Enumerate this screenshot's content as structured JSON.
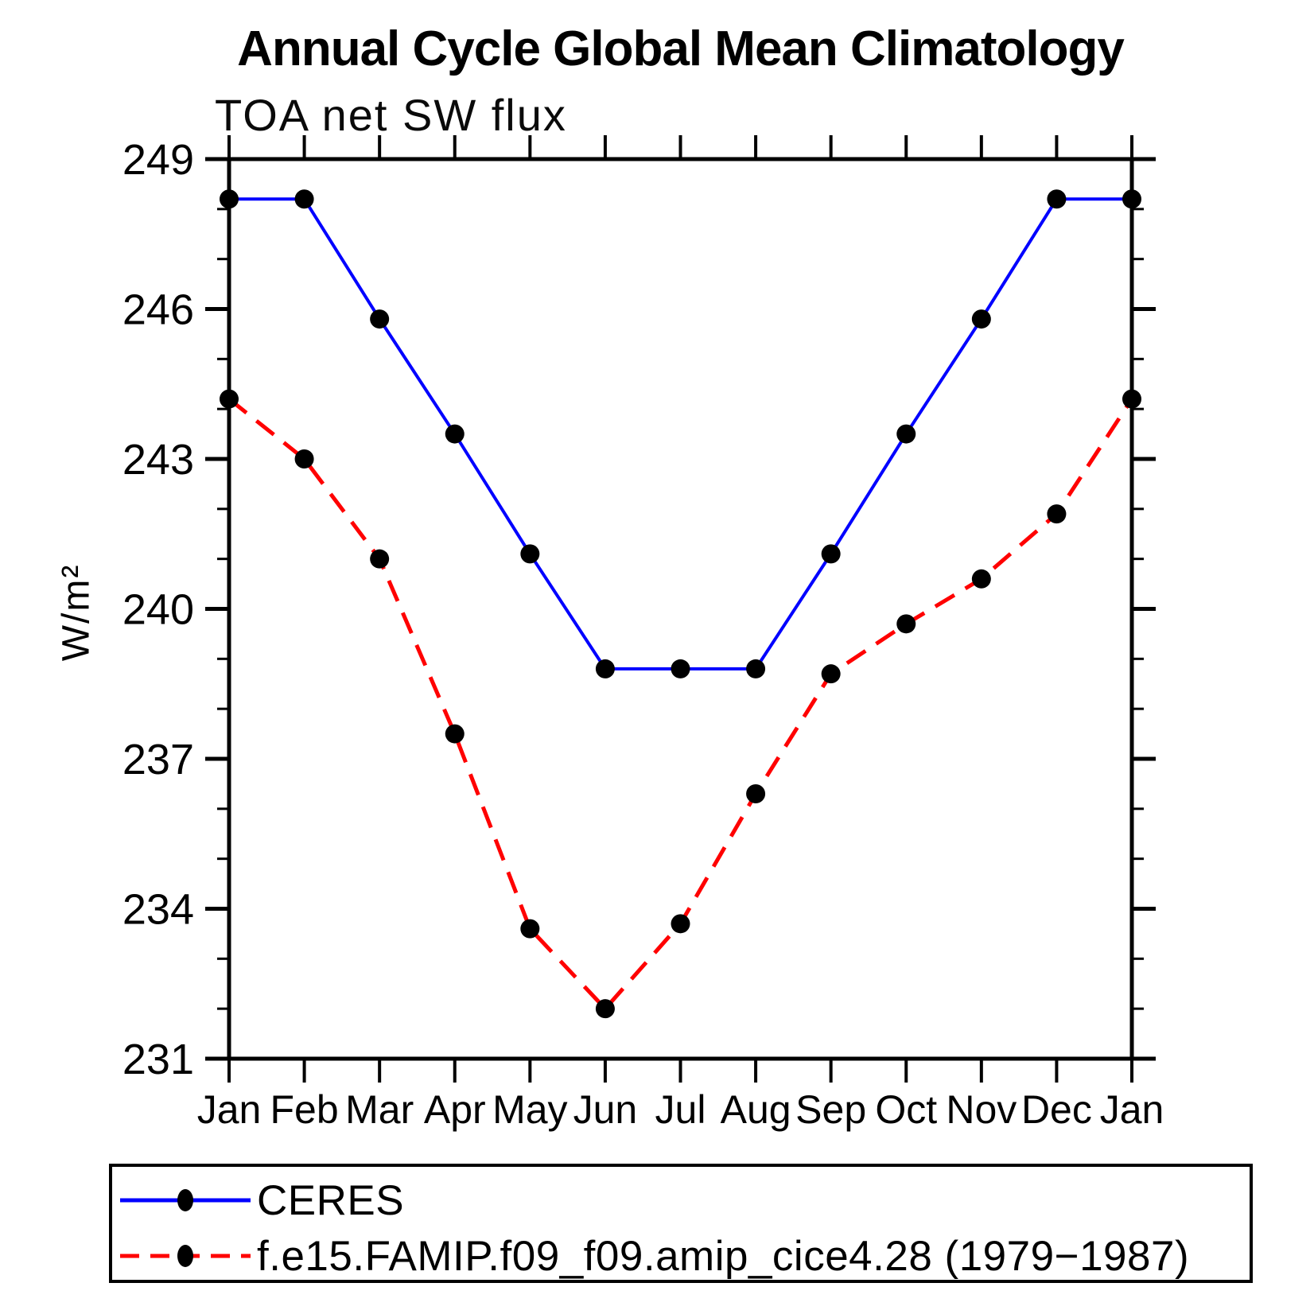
{
  "chart_data": {
    "type": "line",
    "title": "Annual Cycle Global Mean Climatology",
    "subtitle": "TOA net SW flux",
    "ylabel": "W/m²",
    "xlabel": "",
    "x_categories": [
      "Jan",
      "Feb",
      "Mar",
      "Apr",
      "May",
      "Jun",
      "Jul",
      "Aug",
      "Sep",
      "Oct",
      "Nov",
      "Dec",
      "Jan"
    ],
    "ylim": [
      231,
      249
    ],
    "yticks_major": [
      231,
      234,
      237,
      240,
      243,
      246,
      249
    ],
    "ytick_minor_step": 1,
    "grid": false,
    "legend_position": "bottom-left-box",
    "axis_color": "#000000",
    "series": [
      {
        "name": "CERES",
        "color": "#0000ff",
        "line_style": "solid",
        "marker": "filled-circle",
        "marker_color": "#000000",
        "values": [
          248.2,
          248.2,
          245.8,
          243.5,
          241.1,
          238.8,
          238.8,
          238.8,
          241.1,
          243.5,
          245.8,
          248.2,
          248.2
        ]
      },
      {
        "name": "f.e15.FAMIP.f09_f09.amip_cice4.28 (1979−1987)",
        "color": "#ff0000",
        "line_style": "dashed",
        "marker": "filled-circle",
        "marker_color": "#000000",
        "values": [
          244.2,
          243.0,
          241.0,
          237.5,
          233.6,
          232.0,
          233.7,
          236.3,
          238.7,
          239.7,
          240.6,
          241.9,
          244.2
        ]
      }
    ]
  }
}
